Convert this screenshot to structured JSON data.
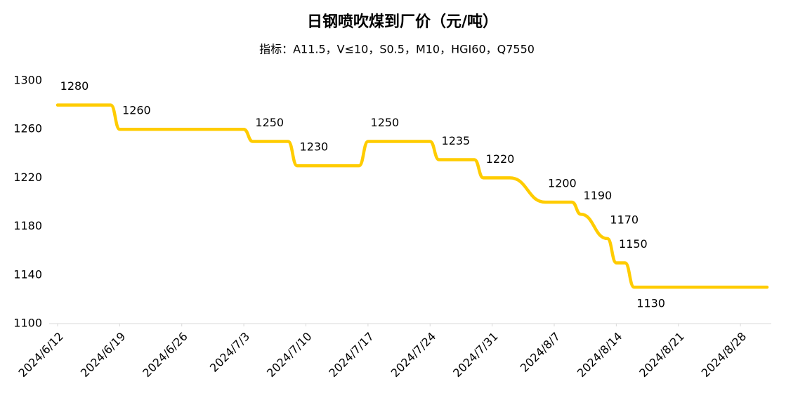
{
  "chart_data": {
    "type": "line",
    "title": "日钢喷吹煤到厂价（元/吨）",
    "subtitle": "指标：A11.5，V≤10，S0.5，M10，HGI60，Q7550",
    "x": [
      "2024/6/12",
      "2024/6/18",
      "2024/6/19",
      "2024/7/3",
      "2024/7/4",
      "2024/7/8",
      "2024/7/9",
      "2024/7/16",
      "2024/7/17",
      "2024/7/24",
      "2024/7/25",
      "2024/7/29",
      "2024/7/30",
      "2024/8/2",
      "2024/8/6",
      "2024/8/9",
      "2024/8/10",
      "2024/8/13",
      "2024/8/14",
      "2024/8/15",
      "2024/8/16",
      "2024/8/31"
    ],
    "series": [
      {
        "color": "#FFCC00",
        "values": [
          1280,
          1280,
          1260,
          1260,
          1250,
          1250,
          1230,
          1230,
          1250,
          1250,
          1235,
          1235,
          1220,
          1220,
          1200,
          1200,
          1190,
          1170,
          1150,
          1150,
          1130,
          1130
        ]
      }
    ],
    "xlim": [
      "2024/6/12",
      "2024/8/31"
    ],
    "xticks": [
      "2024/6/12",
      "2024/6/19",
      "2024/6/26",
      "2024/7/3",
      "2024/7/10",
      "2024/7/17",
      "2024/7/24",
      "2024/7/31",
      "2024/8/7",
      "2024/8/14",
      "2024/8/21",
      "2024/8/28"
    ],
    "ylim": [
      1100,
      1300
    ],
    "yticks": [
      1100,
      1140,
      1180,
      1220,
      1260,
      1300
    ],
    "grid": false
  }
}
